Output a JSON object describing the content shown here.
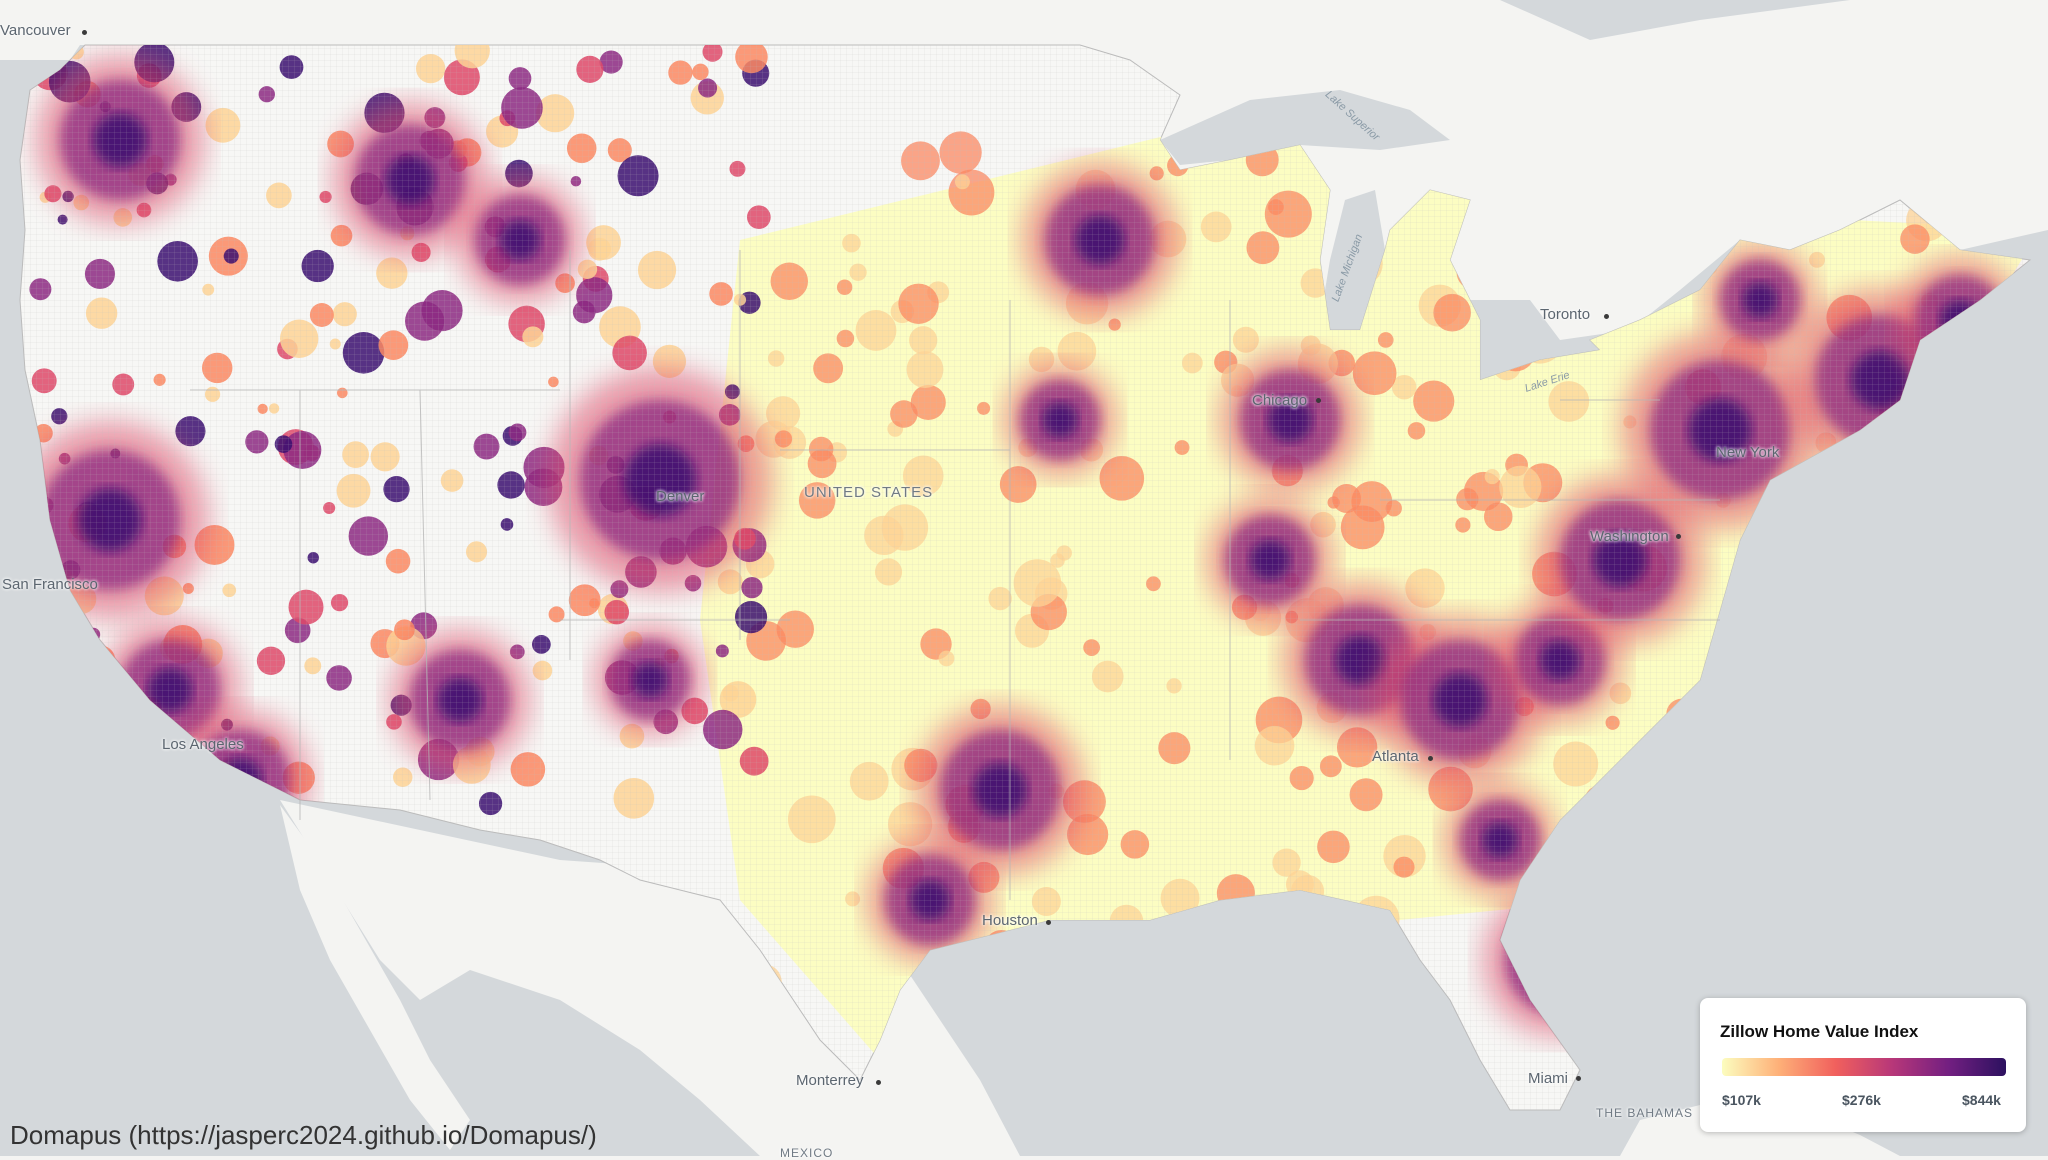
{
  "map": {
    "colors": {
      "background": "#f4f4f2",
      "water": "#d4d8db",
      "ramp": [
        "#fcfdbf",
        "#fed395",
        "#fb8861",
        "#de4968",
        "#8c2981",
        "#3b0f70",
        "#1e0b48"
      ],
      "no_data": "#f7f7f5",
      "boundary": "#c8c8c8"
    }
  },
  "labels": {
    "cities": [
      {
        "name": "Vancouver",
        "key": "vancouver"
      },
      {
        "name": "Toronto",
        "key": "toronto"
      },
      {
        "name": "Chicago",
        "key": "chicago"
      },
      {
        "name": "New York",
        "key": "new-york"
      },
      {
        "name": "Washington",
        "key": "washington"
      },
      {
        "name": "Denver",
        "key": "denver"
      },
      {
        "name": "San Francisco",
        "key": "san-francisco"
      },
      {
        "name": "Los Angeles",
        "key": "los-angeles"
      },
      {
        "name": "Atlanta",
        "key": "atlanta"
      },
      {
        "name": "Houston",
        "key": "houston"
      },
      {
        "name": "Monterrey",
        "key": "monterrey"
      },
      {
        "name": "Miami",
        "key": "miami"
      }
    ],
    "countries": {
      "usa": "UNITED STATES",
      "bahamas": "THE BAHAMAS",
      "mexico": "MEXICO"
    },
    "water": {
      "lake_superior": "Lake Superior",
      "lake_michigan": "Lake Michigan",
      "lake_erie": "Lake Erie"
    }
  },
  "legend": {
    "title": "Zillow Home Value Index",
    "min_label": "$107k",
    "mid_label": "$276k",
    "max_label": "$844k",
    "gradient": [
      "#fcfdbf",
      "#feb078",
      "#f1605d",
      "#b73779",
      "#721f81",
      "#2c115f"
    ]
  },
  "attribution": "Domapus (https://jasperc2024.github.io/Domapus/)"
}
